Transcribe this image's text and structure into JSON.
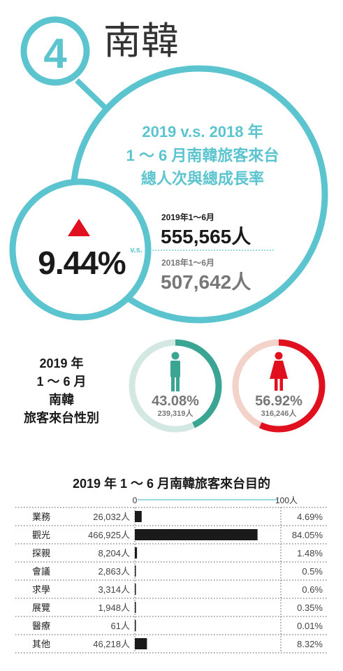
{
  "header": {
    "number": "4",
    "country": "南韓"
  },
  "growth": {
    "title_lines": [
      "2019 v.s. 2018 年",
      "1 ～ 6 月南韓旅客來台",
      "總人次與總成長率"
    ],
    "rate": "9.44%",
    "vs": "v.s.",
    "current_period": "2019年1～6月",
    "current_total": "555,565人",
    "previous_period": "2018年1～6月",
    "previous_total": "507,642人",
    "accent_color": "#5bc4cf",
    "up_color": "#e0101f"
  },
  "gender": {
    "title_lines": [
      "2019 年",
      "1 ～ 6 月",
      "南韓",
      "旅客來台性別"
    ],
    "male": {
      "icon": "male-person-icon",
      "percent": "43.08%",
      "share": 43.08,
      "count": "239,319人",
      "color": "#3aa592",
      "track_color": "#d3e8e2"
    },
    "female": {
      "icon": "female-person-icon",
      "percent": "56.92%",
      "share": 56.92,
      "count": "316,246人",
      "color": "#e0101f",
      "track_color": "#f2d2c9"
    }
  },
  "chart_data": {
    "type": "bar",
    "title": "2019 年 1 ～ 6 月南韓旅客來台目的",
    "scale_labels": [
      "0",
      "100人"
    ],
    "bar_color": "#1a1a1a",
    "categories": [
      "業務",
      "觀光",
      "探親",
      "會議",
      "求學",
      "展覽",
      "醫療",
      "其他"
    ],
    "counts": [
      "26,032人",
      "466,925人",
      "8,204人",
      "2,863人",
      "3,314人",
      "1,948人",
      "61人",
      "46,218人"
    ],
    "percent_labels": [
      "4.69%",
      "84.05%",
      "1.48%",
      "0.5%",
      "0.6%",
      "0.35%",
      "0.01%",
      "8.32%"
    ],
    "values": [
      4.69,
      84.05,
      1.48,
      0.5,
      0.6,
      0.35,
      0.01,
      8.32
    ],
    "xlim": [
      0,
      100
    ]
  }
}
